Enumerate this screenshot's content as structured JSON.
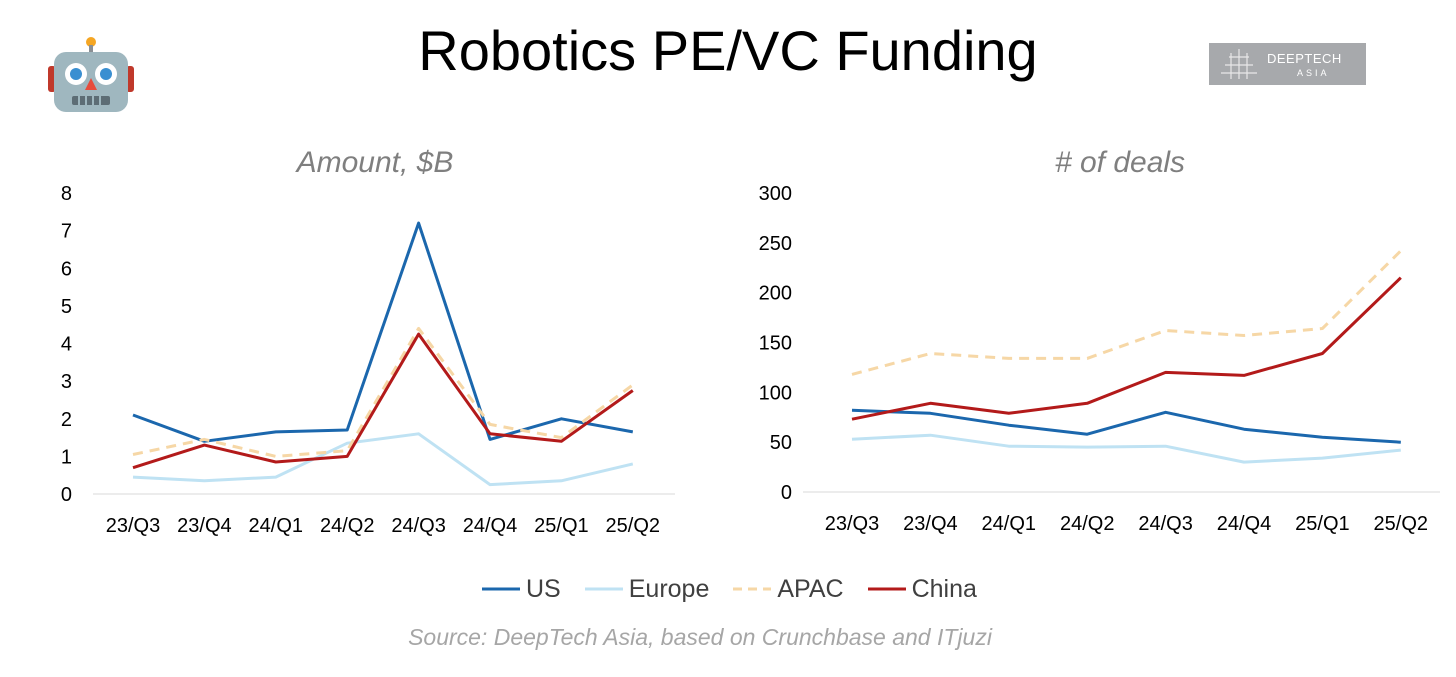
{
  "title": "Robotics PE/VC Funding",
  "logo": {
    "line1": "DEEPTECH",
    "line2": "ASIA"
  },
  "source": "Source: DeepTech Asia, based on Crunchbase and ITjuzi",
  "colors": {
    "US": "#1b67ad",
    "Europe": "#bfe2f3",
    "APAC": "#f6d7a6",
    "China": "#b31a1a"
  },
  "legend": [
    {
      "name": "US",
      "style": "solid"
    },
    {
      "name": "Europe",
      "style": "solid"
    },
    {
      "name": "APAC",
      "style": "dashed"
    },
    {
      "name": "China",
      "style": "solid"
    }
  ],
  "chart_data": [
    {
      "type": "line",
      "title": "Amount, $B",
      "categories": [
        "23/Q3",
        "23/Q4",
        "24/Q1",
        "24/Q2",
        "24/Q3",
        "24/Q4",
        "25/Q1",
        "25/Q2"
      ],
      "yticks": [
        0,
        1,
        2,
        3,
        4,
        5,
        6,
        7,
        8
      ],
      "ylim": [
        0,
        8
      ],
      "series": [
        {
          "name": "US",
          "values": [
            2.1,
            1.4,
            1.65,
            1.7,
            7.2,
            1.45,
            2.0,
            1.65
          ]
        },
        {
          "name": "Europe",
          "values": [
            0.45,
            0.35,
            0.45,
            1.35,
            1.6,
            0.25,
            0.35,
            0.8
          ]
        },
        {
          "name": "APAC",
          "values": [
            1.05,
            1.45,
            1.0,
            1.15,
            4.4,
            1.85,
            1.5,
            2.9
          ]
        },
        {
          "name": "China",
          "values": [
            0.7,
            1.3,
            0.85,
            1.0,
            4.25,
            1.6,
            1.4,
            2.75
          ]
        }
      ]
    },
    {
      "type": "line",
      "title": "# of deals",
      "categories": [
        "23/Q3",
        "23/Q4",
        "24/Q1",
        "24/Q2",
        "24/Q3",
        "24/Q4",
        "25/Q1",
        "25/Q2"
      ],
      "yticks": [
        0,
        50,
        100,
        150,
        200,
        250,
        300
      ],
      "ylim": [
        0,
        300
      ],
      "series": [
        {
          "name": "US",
          "values": [
            82,
            79,
            67,
            58,
            80,
            63,
            55,
            50
          ]
        },
        {
          "name": "Europe",
          "values": [
            53,
            57,
            46,
            45,
            46,
            30,
            34,
            42
          ]
        },
        {
          "name": "APAC",
          "values": [
            118,
            139,
            134,
            134,
            162,
            157,
            164,
            242
          ]
        },
        {
          "name": "China",
          "values": [
            73,
            89,
            79,
            89,
            120,
            117,
            139,
            215
          ]
        }
      ]
    }
  ]
}
